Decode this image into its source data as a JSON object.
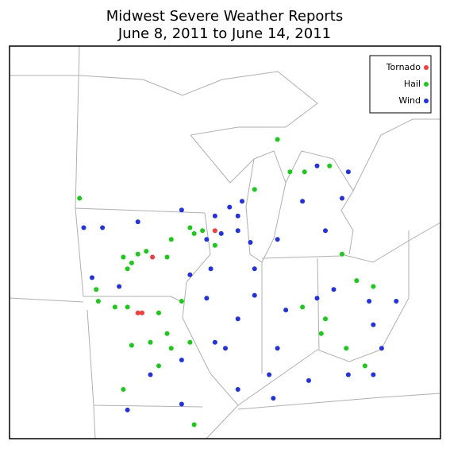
{
  "title": [
    "Midwest Severe Weather Reports",
    "June 8, 2011 to June 14, 2011"
  ],
  "series": [
    {
      "name": "Tornado",
      "color": "#ff3838",
      "points": [
        [
          -92.8,
          42.0
        ],
        [
          -93.5,
          40.1
        ],
        [
          -93.3,
          40.1
        ],
        [
          -89.8,
          42.9
        ]
      ]
    },
    {
      "name": "Hail",
      "color": "#10d010",
      "points": [
        [
          -96.3,
          44.0
        ],
        [
          -94.2,
          42.0
        ],
        [
          -93.8,
          41.8
        ],
        [
          -93.5,
          42.1
        ],
        [
          -94.0,
          41.6
        ],
        [
          -93.1,
          42.2
        ],
        [
          -92.1,
          42.0
        ],
        [
          -91.9,
          42.6
        ],
        [
          -91.0,
          43.0
        ],
        [
          -90.8,
          42.8
        ],
        [
          -90.4,
          42.9
        ],
        [
          -89.8,
          42.4
        ],
        [
          -95.4,
          40.5
        ],
        [
          -94.6,
          40.3
        ],
        [
          -94.0,
          40.3
        ],
        [
          -92.5,
          40.1
        ],
        [
          -92.1,
          39.4
        ],
        [
          -92.9,
          39.1
        ],
        [
          -93.8,
          39.0
        ],
        [
          -92.5,
          38.3
        ],
        [
          -91.9,
          38.9
        ],
        [
          -91.0,
          39.1
        ],
        [
          -94.2,
          37.5
        ],
        [
          -90.8,
          36.3
        ],
        [
          -86.8,
          46.0
        ],
        [
          -86.2,
          44.9
        ],
        [
          -85.5,
          44.9
        ],
        [
          -84.3,
          45.1
        ],
        [
          -83.0,
          41.2
        ],
        [
          -82.2,
          41.0
        ],
        [
          -83.5,
          38.9
        ],
        [
          -82.6,
          38.3
        ],
        [
          -84.7,
          39.4
        ],
        [
          -85.6,
          40.3
        ],
        [
          -84.5,
          39.9
        ],
        [
          -95.5,
          40.9
        ],
        [
          -91.4,
          40.5
        ],
        [
          -87.9,
          44.3
        ],
        [
          -83.7,
          42.1
        ]
      ]
    },
    {
      "name": "Wind",
      "color": "#2030f0",
      "points": [
        [
          -96.1,
          43.0
        ],
        [
          -95.2,
          43.0
        ],
        [
          -93.5,
          43.2
        ],
        [
          -91.4,
          43.6
        ],
        [
          -89.8,
          43.4
        ],
        [
          -89.1,
          43.7
        ],
        [
          -88.7,
          42.9
        ],
        [
          -89.5,
          42.8
        ],
        [
          -90.2,
          42.6
        ],
        [
          -88.5,
          43.9
        ],
        [
          -95.7,
          41.3
        ],
        [
          -94.4,
          41.0
        ],
        [
          -91.0,
          41.4
        ],
        [
          -90.0,
          41.6
        ],
        [
          -87.9,
          41.6
        ],
        [
          -87.9,
          40.7
        ],
        [
          -88.7,
          39.9
        ],
        [
          -89.3,
          38.9
        ],
        [
          -89.8,
          39.1
        ],
        [
          -91.4,
          38.5
        ],
        [
          -91.4,
          37.0
        ],
        [
          -94.0,
          36.8
        ],
        [
          -88.7,
          37.5
        ],
        [
          -87.0,
          37.2
        ],
        [
          -85.3,
          37.8
        ],
        [
          -83.4,
          38.0
        ],
        [
          -82.2,
          38.0
        ],
        [
          -81.8,
          38.9
        ],
        [
          -81.1,
          40.5
        ],
        [
          -82.4,
          40.5
        ],
        [
          -84.1,
          40.9
        ],
        [
          -84.9,
          40.6
        ],
        [
          -86.4,
          40.2
        ],
        [
          -86.8,
          38.9
        ],
        [
          -83.7,
          44.0
        ],
        [
          -84.5,
          42.9
        ],
        [
          -85.6,
          43.9
        ],
        [
          -84.9,
          45.1
        ],
        [
          -83.4,
          44.9
        ],
        [
          -90.2,
          40.6
        ],
        [
          -87.2,
          38.0
        ],
        [
          -92.9,
          38.0
        ],
        [
          -82.2,
          39.7
        ],
        [
          -88.7,
          43.4
        ],
        [
          -88.1,
          42.5
        ],
        [
          -86.8,
          42.6
        ]
      ]
    }
  ]
}
